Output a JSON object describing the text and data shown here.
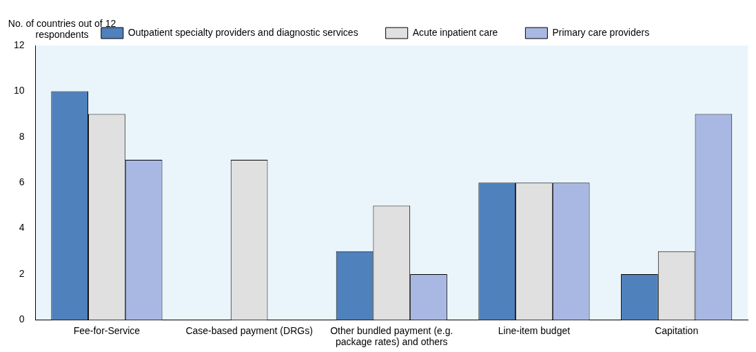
{
  "chart_data": {
    "type": "bar",
    "ylabel": "No. of countries out of 12 respondents",
    "categories": [
      "Fee-for-Service",
      "Case-based payment (DRGs)",
      "Other bundled payment (e.g. package rates) and others",
      "Line-item budget",
      "Capitation"
    ],
    "series": [
      {
        "name": "Outpatient specialty providers and diagnostic services",
        "color": "#4f81bd",
        "values": [
          10,
          0,
          3,
          6,
          2
        ]
      },
      {
        "name": "Acute inpatient care",
        "color": "#e0e0e0",
        "values": [
          9,
          7,
          5,
          6,
          3
        ]
      },
      {
        "name": "Primary care providers",
        "color": "#a9b8e3",
        "values": [
          7,
          0,
          2,
          6,
          9
        ]
      }
    ],
    "ylim": [
      0,
      12
    ],
    "yticks": [
      0,
      2,
      4,
      6,
      8,
      10,
      12
    ],
    "grid": false,
    "legend": "top"
  }
}
